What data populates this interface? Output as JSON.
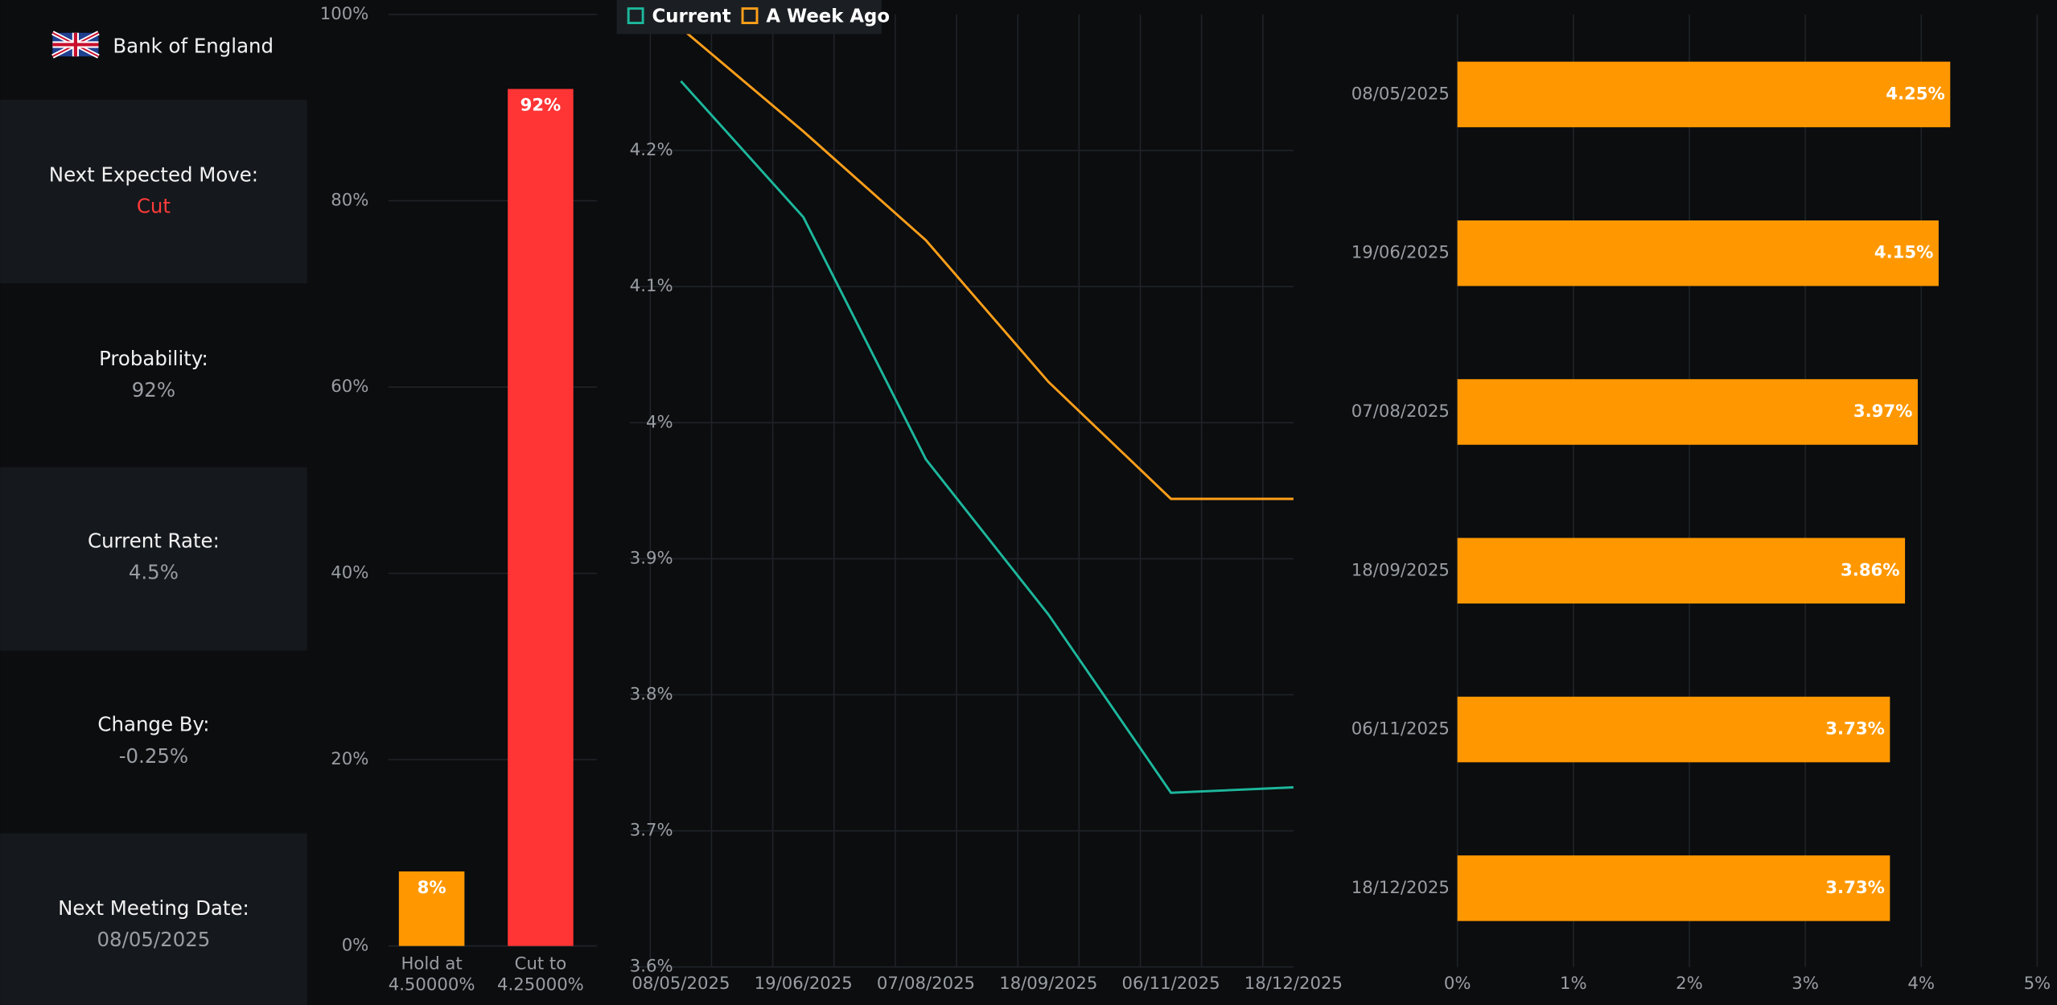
{
  "header": {
    "title": "Bank of England"
  },
  "cards": [
    {
      "label": "Next Expected Move:",
      "value": "Cut"
    },
    {
      "label": "Probability:",
      "value": "92%"
    },
    {
      "label": "Current Rate:",
      "value": "4.5%"
    },
    {
      "label": "Change By:",
      "value": "-0.25%"
    },
    {
      "label": "Next Meeting Date:",
      "value": "08/05/2025"
    }
  ],
  "chart_data": [
    {
      "type": "bar",
      "categories": [
        "Hold at 4.50000%",
        "Cut to 4.25000%"
      ],
      "values": [
        8,
        92
      ],
      "value_labels": [
        "8%",
        "92%"
      ],
      "colors": [
        "#ff9800",
        "#ff3535"
      ],
      "ylim": [
        0,
        100
      ],
      "yticks": [
        {
          "value": 0,
          "label": "0%"
        },
        {
          "value": 20,
          "label": "20%"
        },
        {
          "value": 40,
          "label": "40%"
        },
        {
          "value": 60,
          "label": "60%"
        },
        {
          "value": 80,
          "label": "80%"
        },
        {
          "value": 100,
          "label": "100%"
        }
      ],
      "grid": true
    },
    {
      "type": "line",
      "categories": [
        "08/05/2025",
        "19/06/2025",
        "07/08/2025",
        "18/09/2025",
        "06/11/2025",
        "18/12/2025"
      ],
      "series": [
        {
          "name": "Current",
          "color": "#1db79c",
          "values": [
            4.251,
            4.151,
            3.973,
            3.859,
            3.728,
            3.732
          ]
        },
        {
          "name": "A Week Ago",
          "color": "#ff9f1a",
          "values": [
            4.29,
            4.214,
            4.134,
            4.03,
            3.944,
            3.944
          ]
        }
      ],
      "ylim": [
        3.6,
        4.3
      ],
      "yticks": [
        {
          "value": 3.6,
          "label": "3.6%"
        },
        {
          "value": 3.7,
          "label": "3.7%"
        },
        {
          "value": 3.8,
          "label": "3.8%"
        },
        {
          "value": 3.9,
          "label": "3.9%"
        },
        {
          "value": 4,
          "label": "4%"
        },
        {
          "value": 4.1,
          "label": "4.1%"
        },
        {
          "value": 4.2,
          "label": "4.2%"
        }
      ],
      "grid": true,
      "legend": "top-left"
    },
    {
      "type": "hbar",
      "categories": [
        "08/05/2025",
        "19/06/2025",
        "07/08/2025",
        "18/09/2025",
        "06/11/2025",
        "18/12/2025"
      ],
      "values": [
        4.25,
        4.15,
        3.97,
        3.86,
        3.73,
        3.73
      ],
      "value_labels": [
        "4.25%",
        "4.15%",
        "3.97%",
        "3.86%",
        "3.73%",
        "3.73%"
      ],
      "color": "#ff9800",
      "xlim": [
        0,
        5
      ],
      "xticks": [
        {
          "value": 0,
          "label": "0%"
        },
        {
          "value": 1,
          "label": "1%"
        },
        {
          "value": 2,
          "label": "2%"
        },
        {
          "value": 3,
          "label": "3%"
        },
        {
          "value": 4,
          "label": "4%"
        },
        {
          "value": 5,
          "label": "5%"
        }
      ],
      "grid": true
    }
  ]
}
